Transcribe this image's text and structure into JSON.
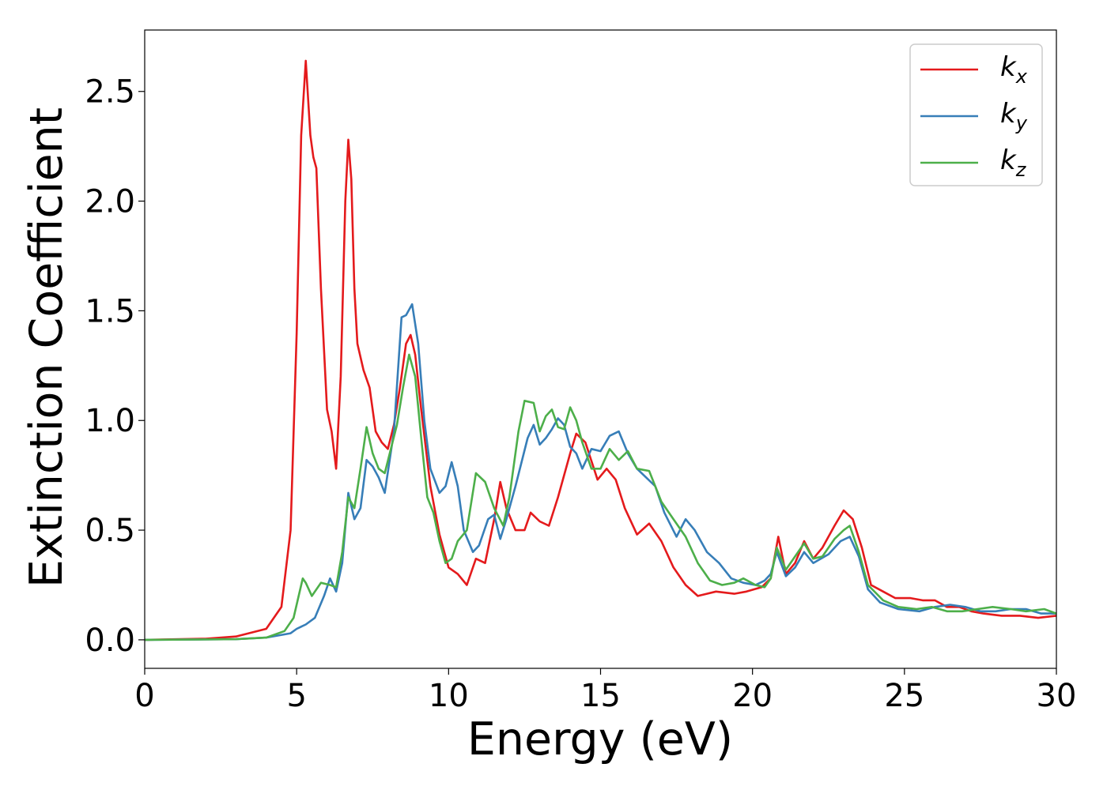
{
  "chart_data": {
    "type": "line",
    "xlabel": "Energy (eV)",
    "ylabel": "Extinction Coefficient",
    "xlim": [
      0,
      30
    ],
    "ylim": [
      -0.13,
      2.78
    ],
    "xticks": [
      "0",
      "5",
      "10",
      "15",
      "20",
      "25",
      "30"
    ],
    "yticks": [
      "0.0",
      "0.5",
      "1.0",
      "1.5",
      "2.0",
      "2.5"
    ],
    "grid": false,
    "legend_position": "top-right",
    "series": [
      {
        "name": "k_x",
        "label_base": "k",
        "label_sub": "x",
        "color": "#e41a1c",
        "points": [
          [
            0,
            0.0
          ],
          [
            2,
            0.005
          ],
          [
            3,
            0.015
          ],
          [
            4,
            0.05
          ],
          [
            4.5,
            0.15
          ],
          [
            4.8,
            0.5
          ],
          [
            5.0,
            1.4
          ],
          [
            5.15,
            2.3
          ],
          [
            5.3,
            2.64
          ],
          [
            5.45,
            2.3
          ],
          [
            5.55,
            2.2
          ],
          [
            5.65,
            2.15
          ],
          [
            5.8,
            1.6
          ],
          [
            6.0,
            1.05
          ],
          [
            6.15,
            0.95
          ],
          [
            6.3,
            0.78
          ],
          [
            6.45,
            1.2
          ],
          [
            6.6,
            2.0
          ],
          [
            6.7,
            2.28
          ],
          [
            6.8,
            2.1
          ],
          [
            6.9,
            1.6
          ],
          [
            7.0,
            1.35
          ],
          [
            7.2,
            1.23
          ],
          [
            7.4,
            1.15
          ],
          [
            7.6,
            0.95
          ],
          [
            7.8,
            0.9
          ],
          [
            8.0,
            0.87
          ],
          [
            8.2,
            0.98
          ],
          [
            8.4,
            1.15
          ],
          [
            8.6,
            1.35
          ],
          [
            8.75,
            1.39
          ],
          [
            8.9,
            1.3
          ],
          [
            9.1,
            1.05
          ],
          [
            9.4,
            0.7
          ],
          [
            9.7,
            0.48
          ],
          [
            10.0,
            0.33
          ],
          [
            10.3,
            0.3
          ],
          [
            10.6,
            0.25
          ],
          [
            10.9,
            0.37
          ],
          [
            11.2,
            0.35
          ],
          [
            11.5,
            0.55
          ],
          [
            11.7,
            0.72
          ],
          [
            11.9,
            0.6
          ],
          [
            12.2,
            0.5
          ],
          [
            12.5,
            0.5
          ],
          [
            12.7,
            0.58
          ],
          [
            13.0,
            0.54
          ],
          [
            13.3,
            0.52
          ],
          [
            13.6,
            0.65
          ],
          [
            14.0,
            0.85
          ],
          [
            14.2,
            0.94
          ],
          [
            14.5,
            0.9
          ],
          [
            14.9,
            0.73
          ],
          [
            15.2,
            0.78
          ],
          [
            15.5,
            0.73
          ],
          [
            15.8,
            0.6
          ],
          [
            16.2,
            0.48
          ],
          [
            16.6,
            0.53
          ],
          [
            17.0,
            0.45
          ],
          [
            17.4,
            0.33
          ],
          [
            17.8,
            0.25
          ],
          [
            18.2,
            0.2
          ],
          [
            18.8,
            0.22
          ],
          [
            19.4,
            0.21
          ],
          [
            19.8,
            0.22
          ],
          [
            20.3,
            0.24
          ],
          [
            20.6,
            0.28
          ],
          [
            20.85,
            0.47
          ],
          [
            21.1,
            0.3
          ],
          [
            21.4,
            0.35
          ],
          [
            21.7,
            0.45
          ],
          [
            22.0,
            0.37
          ],
          [
            22.3,
            0.42
          ],
          [
            22.7,
            0.52
          ],
          [
            23.0,
            0.59
          ],
          [
            23.3,
            0.55
          ],
          [
            23.6,
            0.42
          ],
          [
            23.9,
            0.25
          ],
          [
            24.3,
            0.22
          ],
          [
            24.7,
            0.19
          ],
          [
            25.2,
            0.19
          ],
          [
            25.6,
            0.18
          ],
          [
            26.0,
            0.18
          ],
          [
            26.4,
            0.15
          ],
          [
            26.8,
            0.15
          ],
          [
            27.2,
            0.13
          ],
          [
            27.6,
            0.12
          ],
          [
            28.2,
            0.11
          ],
          [
            28.8,
            0.11
          ],
          [
            29.4,
            0.1
          ],
          [
            30.0,
            0.11
          ]
        ]
      },
      {
        "name": "k_y",
        "label_base": "k",
        "label_sub": "y",
        "color": "#377eb8",
        "points": [
          [
            0,
            0.0
          ],
          [
            3,
            0.003
          ],
          [
            4,
            0.01
          ],
          [
            4.8,
            0.03
          ],
          [
            5.0,
            0.05
          ],
          [
            5.3,
            0.07
          ],
          [
            5.6,
            0.1
          ],
          [
            5.9,
            0.2
          ],
          [
            6.1,
            0.28
          ],
          [
            6.3,
            0.22
          ],
          [
            6.5,
            0.35
          ],
          [
            6.7,
            0.67
          ],
          [
            6.9,
            0.55
          ],
          [
            7.1,
            0.6
          ],
          [
            7.3,
            0.82
          ],
          [
            7.5,
            0.79
          ],
          [
            7.7,
            0.74
          ],
          [
            7.9,
            0.67
          ],
          [
            8.2,
            0.95
          ],
          [
            8.45,
            1.47
          ],
          [
            8.6,
            1.48
          ],
          [
            8.8,
            1.53
          ],
          [
            9.0,
            1.35
          ],
          [
            9.2,
            1.0
          ],
          [
            9.4,
            0.78
          ],
          [
            9.7,
            0.67
          ],
          [
            9.9,
            0.7
          ],
          [
            10.1,
            0.81
          ],
          [
            10.3,
            0.7
          ],
          [
            10.5,
            0.5
          ],
          [
            10.8,
            0.4
          ],
          [
            11.0,
            0.43
          ],
          [
            11.3,
            0.55
          ],
          [
            11.5,
            0.57
          ],
          [
            11.7,
            0.46
          ],
          [
            11.9,
            0.55
          ],
          [
            12.2,
            0.7
          ],
          [
            12.6,
            0.92
          ],
          [
            12.8,
            0.98
          ],
          [
            13.0,
            0.89
          ],
          [
            13.2,
            0.92
          ],
          [
            13.4,
            0.96
          ],
          [
            13.6,
            1.01
          ],
          [
            13.8,
            0.98
          ],
          [
            14.0,
            0.88
          ],
          [
            14.2,
            0.85
          ],
          [
            14.4,
            0.78
          ],
          [
            14.7,
            0.87
          ],
          [
            15.0,
            0.86
          ],
          [
            15.3,
            0.93
          ],
          [
            15.6,
            0.95
          ],
          [
            15.9,
            0.85
          ],
          [
            16.2,
            0.78
          ],
          [
            16.5,
            0.74
          ],
          [
            16.8,
            0.7
          ],
          [
            17.1,
            0.58
          ],
          [
            17.5,
            0.47
          ],
          [
            17.8,
            0.55
          ],
          [
            18.1,
            0.5
          ],
          [
            18.5,
            0.4
          ],
          [
            18.9,
            0.35
          ],
          [
            19.3,
            0.28
          ],
          [
            19.7,
            0.26
          ],
          [
            20.1,
            0.25
          ],
          [
            20.4,
            0.27
          ],
          [
            20.6,
            0.3
          ],
          [
            20.8,
            0.4
          ],
          [
            21.1,
            0.29
          ],
          [
            21.4,
            0.33
          ],
          [
            21.7,
            0.4
          ],
          [
            22.0,
            0.35
          ],
          [
            22.5,
            0.39
          ],
          [
            22.9,
            0.45
          ],
          [
            23.2,
            0.47
          ],
          [
            23.5,
            0.38
          ],
          [
            23.8,
            0.23
          ],
          [
            24.2,
            0.17
          ],
          [
            24.8,
            0.14
          ],
          [
            25.5,
            0.13
          ],
          [
            26.0,
            0.15
          ],
          [
            26.5,
            0.16
          ],
          [
            27.0,
            0.15
          ],
          [
            27.5,
            0.13
          ],
          [
            28.0,
            0.13
          ],
          [
            28.5,
            0.14
          ],
          [
            29.0,
            0.14
          ],
          [
            29.5,
            0.12
          ],
          [
            30.0,
            0.12
          ]
        ]
      },
      {
        "name": "k_z",
        "label_base": "k",
        "label_sub": "z",
        "color": "#4daf4a",
        "points": [
          [
            0,
            0.0
          ],
          [
            3,
            0.003
          ],
          [
            4,
            0.01
          ],
          [
            4.6,
            0.04
          ],
          [
            4.9,
            0.1
          ],
          [
            5.1,
            0.22
          ],
          [
            5.2,
            0.28
          ],
          [
            5.3,
            0.26
          ],
          [
            5.5,
            0.2
          ],
          [
            5.8,
            0.26
          ],
          [
            6.1,
            0.25
          ],
          [
            6.3,
            0.24
          ],
          [
            6.5,
            0.4
          ],
          [
            6.7,
            0.65
          ],
          [
            6.9,
            0.6
          ],
          [
            7.1,
            0.78
          ],
          [
            7.3,
            0.97
          ],
          [
            7.5,
            0.85
          ],
          [
            7.7,
            0.78
          ],
          [
            7.9,
            0.76
          ],
          [
            8.1,
            0.87
          ],
          [
            8.3,
            0.98
          ],
          [
            8.5,
            1.15
          ],
          [
            8.7,
            1.3
          ],
          [
            8.9,
            1.2
          ],
          [
            9.1,
            0.92
          ],
          [
            9.3,
            0.65
          ],
          [
            9.5,
            0.58
          ],
          [
            9.7,
            0.45
          ],
          [
            9.9,
            0.35
          ],
          [
            10.1,
            0.37
          ],
          [
            10.3,
            0.45
          ],
          [
            10.6,
            0.5
          ],
          [
            10.9,
            0.76
          ],
          [
            11.2,
            0.72
          ],
          [
            11.5,
            0.6
          ],
          [
            11.8,
            0.52
          ],
          [
            12.0,
            0.65
          ],
          [
            12.3,
            0.95
          ],
          [
            12.5,
            1.09
          ],
          [
            12.8,
            1.08
          ],
          [
            13.0,
            0.95
          ],
          [
            13.2,
            1.02
          ],
          [
            13.4,
            1.05
          ],
          [
            13.6,
            0.97
          ],
          [
            13.8,
            0.96
          ],
          [
            14.0,
            1.06
          ],
          [
            14.2,
            1.0
          ],
          [
            14.4,
            0.9
          ],
          [
            14.7,
            0.78
          ],
          [
            15.0,
            0.78
          ],
          [
            15.3,
            0.87
          ],
          [
            15.6,
            0.82
          ],
          [
            15.9,
            0.86
          ],
          [
            16.2,
            0.78
          ],
          [
            16.6,
            0.77
          ],
          [
            17.0,
            0.63
          ],
          [
            17.4,
            0.55
          ],
          [
            17.8,
            0.47
          ],
          [
            18.2,
            0.35
          ],
          [
            18.6,
            0.27
          ],
          [
            19.0,
            0.25
          ],
          [
            19.4,
            0.26
          ],
          [
            19.7,
            0.28
          ],
          [
            20.1,
            0.25
          ],
          [
            20.4,
            0.24
          ],
          [
            20.6,
            0.28
          ],
          [
            20.8,
            0.42
          ],
          [
            21.1,
            0.32
          ],
          [
            21.4,
            0.38
          ],
          [
            21.7,
            0.44
          ],
          [
            22.0,
            0.37
          ],
          [
            22.3,
            0.38
          ],
          [
            22.7,
            0.46
          ],
          [
            23.0,
            0.5
          ],
          [
            23.2,
            0.52
          ],
          [
            23.5,
            0.4
          ],
          [
            23.8,
            0.25
          ],
          [
            24.3,
            0.18
          ],
          [
            24.8,
            0.15
          ],
          [
            25.4,
            0.14
          ],
          [
            25.9,
            0.15
          ],
          [
            26.4,
            0.13
          ],
          [
            26.9,
            0.13
          ],
          [
            27.4,
            0.14
          ],
          [
            27.9,
            0.15
          ],
          [
            28.5,
            0.14
          ],
          [
            29.0,
            0.13
          ],
          [
            29.6,
            0.14
          ],
          [
            30.0,
            0.12
          ]
        ]
      }
    ]
  }
}
